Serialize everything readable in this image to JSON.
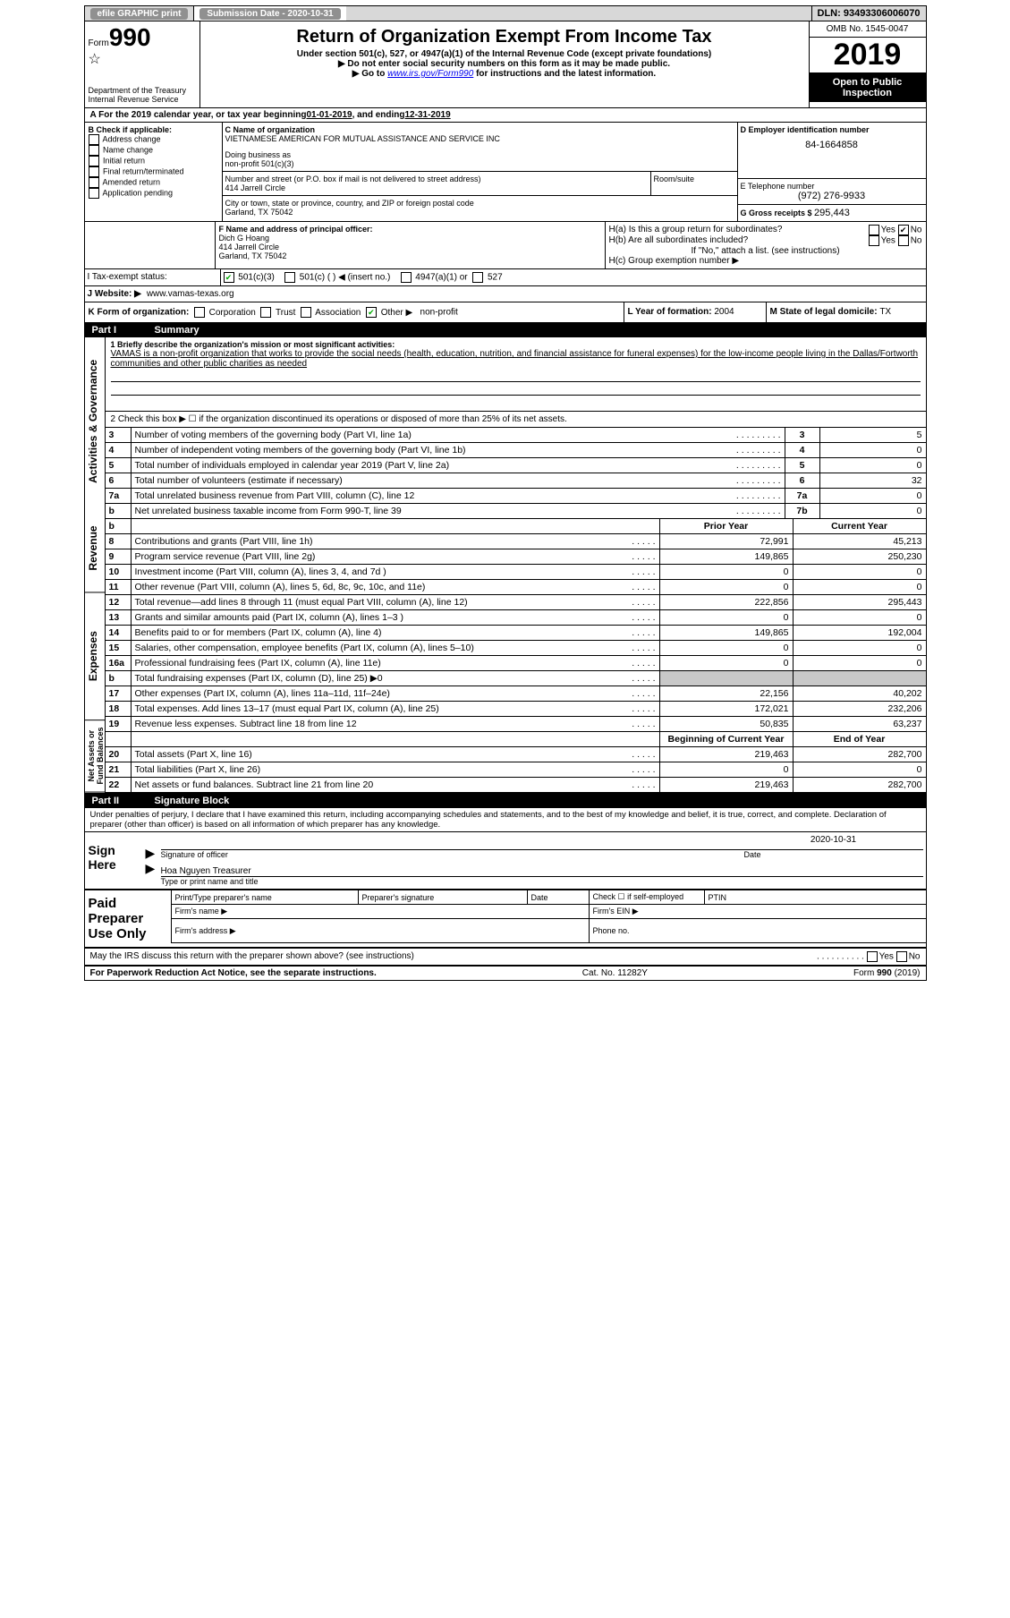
{
  "topbar": {
    "efile_label": "efile GRAPHIC print",
    "sub_label_prefix": "Submission Date - ",
    "sub_date": "2020-10-31",
    "dln_prefix": "DLN: ",
    "dln": "93493306006070"
  },
  "header": {
    "form_label": "Form",
    "form_num": "990",
    "dept1": "Department of the Treasury",
    "dept2": "Internal Revenue Service",
    "title": "Return of Organization Exempt From Income Tax",
    "sub1": "Under section 501(c), 527, or 4947(a)(1) of the Internal Revenue Code (except private foundations)",
    "sub2": "▶ Do not enter social security numbers on this form as it may be made public.",
    "sub3_prefix": "▶ Go to ",
    "sub3_link": "www.irs.gov/Form990",
    "sub3_suffix": " for instructions and the latest information.",
    "omb": "OMB No. 1545-0047",
    "year": "2019",
    "open1": "Open to Public",
    "open2": "Inspection"
  },
  "row_a": {
    "label_prefix": "A For the 2019 calendar year, or tax year beginning ",
    "begin": "01-01-2019",
    "mid": " , and ending ",
    "end": "12-31-2019"
  },
  "section_b": {
    "label": "B Check if applicable:",
    "items": [
      "Address change",
      "Name change",
      "Initial return",
      "Final return/terminated",
      "Amended return",
      "Application pending"
    ]
  },
  "section_c": {
    "name_label": "C Name of organization",
    "name": "VIETNAMESE AMERICAN FOR MUTUAL ASSISTANCE AND SERVICE INC",
    "dba_label": "Doing business as",
    "dba": "non-profit 501(c)(3)",
    "addr_label": "Number and street (or P.O. box if mail is not delivered to street address)",
    "room_label": "Room/suite",
    "addr": "414 Jarrell Circle",
    "city_label": "City or town, state or province, country, and ZIP or foreign postal code",
    "city": "Garland, TX   75042"
  },
  "section_d": {
    "label": "D Employer identification number",
    "value": "84-1664858",
    "e_label": "E Telephone number",
    "e_value": "(972) 276-9933",
    "g_label": "G Gross receipts $ ",
    "g_value": "295,443"
  },
  "section_f": {
    "label": "F  Name and address of principal officer:",
    "name": "Dich G Hoang",
    "addr1": "414 Jarrell Circle",
    "addr2": "Garland, TX  75042"
  },
  "section_h": {
    "ha_label": "H(a)  Is this a group return for subordinates?",
    "yes": "Yes",
    "no": "No",
    "hb_label": "H(b)  Are all subordinates included?",
    "hb_note": "If \"No,\" attach a list. (see instructions)",
    "hc_label": "H(c)  Group exemption number ▶"
  },
  "row_i": {
    "label": "I  Tax-exempt status:",
    "opt1": "501(c)(3)",
    "opt2": "501(c) (   ) ◀ (insert no.)",
    "opt3": "4947(a)(1) or",
    "opt4": "527"
  },
  "row_j": {
    "label": "J  Website: ▶",
    "value": "www.vamas-texas.org"
  },
  "row_k": {
    "label": "K Form of organization:",
    "items": [
      "Corporation",
      "Trust",
      "Association",
      "Other ▶"
    ],
    "other_val": "non-profit",
    "l_label": "L Year of formation: ",
    "l_value": "2004",
    "m_label": "M State of legal domicile: ",
    "m_value": "TX"
  },
  "part1": {
    "num": "Part I",
    "title": "Summary",
    "q1_label": "1  Briefly describe the organization's mission or most significant activities:",
    "q1_text": "VAMAS is a non-profit organization that works to provide the social needs (health, education, nutrition, and financial assistance for funeral expenses) for the low-income people living in the Dallas/Fortworth communities and other public charities as needed",
    "q2": "2  Check this box ▶  ☐  if the organization discontinued its operations or disposed of more than 25% of its net assets.",
    "rows_gov": [
      {
        "n": "3",
        "t": "Number of voting members of the governing body (Part VI, line 1a)",
        "box": "3",
        "v": "5"
      },
      {
        "n": "4",
        "t": "Number of independent voting members of the governing body (Part VI, line 1b)",
        "box": "4",
        "v": "0"
      },
      {
        "n": "5",
        "t": "Total number of individuals employed in calendar year 2019 (Part V, line 2a)",
        "box": "5",
        "v": "0"
      },
      {
        "n": "6",
        "t": "Total number of volunteers (estimate if necessary)",
        "box": "6",
        "v": "32"
      },
      {
        "n": "7a",
        "t": "Total unrelated business revenue from Part VIII, column (C), line 12",
        "box": "7a",
        "v": "0"
      },
      {
        "n": "b",
        "t": "Net unrelated business taxable income from Form 990-T, line 39",
        "box": "7b",
        "v": "0"
      }
    ],
    "prior_label": "Prior Year",
    "current_label": "Current Year",
    "rows_rev": [
      {
        "n": "8",
        "t": "Contributions and grants (Part VIII, line 1h)",
        "p": "72,991",
        "c": "45,213"
      },
      {
        "n": "9",
        "t": "Program service revenue (Part VIII, line 2g)",
        "p": "149,865",
        "c": "250,230"
      },
      {
        "n": "10",
        "t": "Investment income (Part VIII, column (A), lines 3, 4, and 7d )",
        "p": "0",
        "c": "0"
      },
      {
        "n": "11",
        "t": "Other revenue (Part VIII, column (A), lines 5, 6d, 8c, 9c, 10c, and 11e)",
        "p": "0",
        "c": "0"
      },
      {
        "n": "12",
        "t": "Total revenue—add lines 8 through 11 (must equal Part VIII, column (A), line 12)",
        "p": "222,856",
        "c": "295,443"
      }
    ],
    "rows_exp": [
      {
        "n": "13",
        "t": "Grants and similar amounts paid (Part IX, column (A), lines 1–3 )",
        "p": "0",
        "c": "0"
      },
      {
        "n": "14",
        "t": "Benefits paid to or for members (Part IX, column (A), line 4)",
        "p": "149,865",
        "c": "192,004"
      },
      {
        "n": "15",
        "t": "Salaries, other compensation, employee benefits (Part IX, column (A), lines 5–10)",
        "p": "0",
        "c": "0"
      },
      {
        "n": "16a",
        "t": "Professional fundraising fees (Part IX, column (A), line 11e)",
        "p": "0",
        "c": "0"
      },
      {
        "n": "b",
        "t": "Total fundraising expenses (Part IX, column (D), line 25) ▶0",
        "p": "",
        "c": "",
        "shaded": true
      },
      {
        "n": "17",
        "t": "Other expenses (Part IX, column (A), lines 11a–11d, 11f–24e)",
        "p": "22,156",
        "c": "40,202"
      },
      {
        "n": "18",
        "t": "Total expenses. Add lines 13–17 (must equal Part IX, column (A), line 25)",
        "p": "172,021",
        "c": "232,206"
      },
      {
        "n": "19",
        "t": "Revenue less expenses. Subtract line 18 from line 12",
        "p": "50,835",
        "c": "63,237"
      }
    ],
    "begin_label": "Beginning of Current Year",
    "end_label": "End of Year",
    "rows_net": [
      {
        "n": "20",
        "t": "Total assets (Part X, line 16)",
        "p": "219,463",
        "c": "282,700"
      },
      {
        "n": "21",
        "t": "Total liabilities (Part X, line 26)",
        "p": "0",
        "c": "0"
      },
      {
        "n": "22",
        "t": "Net assets or fund balances. Subtract line 21 from line 20",
        "p": "219,463",
        "c": "282,700"
      }
    ]
  },
  "part2": {
    "num": "Part II",
    "title": "Signature Block",
    "penalties": "Under penalties of perjury, I declare that I have examined this return, including accompanying schedules and statements, and to the best of my knowledge and belief, it is true, correct, and complete. Declaration of preparer (other than officer) is based on all information of which preparer has any knowledge.",
    "sign_here": "Sign Here",
    "sig_officer": "Signature of officer",
    "date_label": "Date",
    "date_val": "2020-10-31",
    "type_name": "Hoa Nguyen  Treasurer",
    "type_label": "Type or print name and title",
    "paid_label": "Paid Preparer Use Only",
    "prep_name_label": "Print/Type preparer's name",
    "prep_sig_label": "Preparer's signature",
    "check_self": "Check ☐ if self-employed",
    "ptin_label": "PTIN",
    "firm_name": "Firm's name    ▶",
    "firm_ein": "Firm's EIN ▶",
    "firm_addr": "Firm's address ▶",
    "phone": "Phone no.",
    "may_irs": "May the IRS discuss this return with the preparer shown above? (see instructions)"
  },
  "footer": {
    "left": "For Paperwork Reduction Act Notice, see the separate instructions.",
    "mid": "Cat. No. 11282Y",
    "right": "Form 990 (2019)"
  },
  "vert_labels": {
    "gov": "Activities & Governance",
    "rev": "Revenue",
    "exp": "Expenses",
    "net": "Net Assets or Fund Balances"
  }
}
